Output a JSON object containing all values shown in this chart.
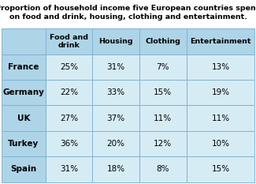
{
  "title_line1": "Proportion of household income five European countries spend",
  "title_line2": "on food and drink, housing, clothing and entertainment.",
  "columns": [
    "",
    "Food and\ndrink",
    "Housing",
    "Clothing",
    "Entertainment"
  ],
  "rows": [
    [
      "France",
      "25%",
      "31%",
      "7%",
      "13%"
    ],
    [
      "Germany",
      "22%",
      "33%",
      "15%",
      "19%"
    ],
    [
      "UK",
      "27%",
      "37%",
      "11%",
      "11%"
    ],
    [
      "Turkey",
      "36%",
      "20%",
      "12%",
      "10%"
    ],
    [
      "Spain",
      "31%",
      "18%",
      "8%",
      "15%"
    ]
  ],
  "header_bg": "#aed4e8",
  "row_label_bg": "#aed4e8",
  "data_bg": "#d6ecf5",
  "border_color": "#7fb3d3",
  "title_fontsize": 6.8,
  "header_fontsize": 6.8,
  "data_fontsize": 7.5,
  "figsize": [
    3.25,
    2.33
  ],
  "dpi": 100
}
